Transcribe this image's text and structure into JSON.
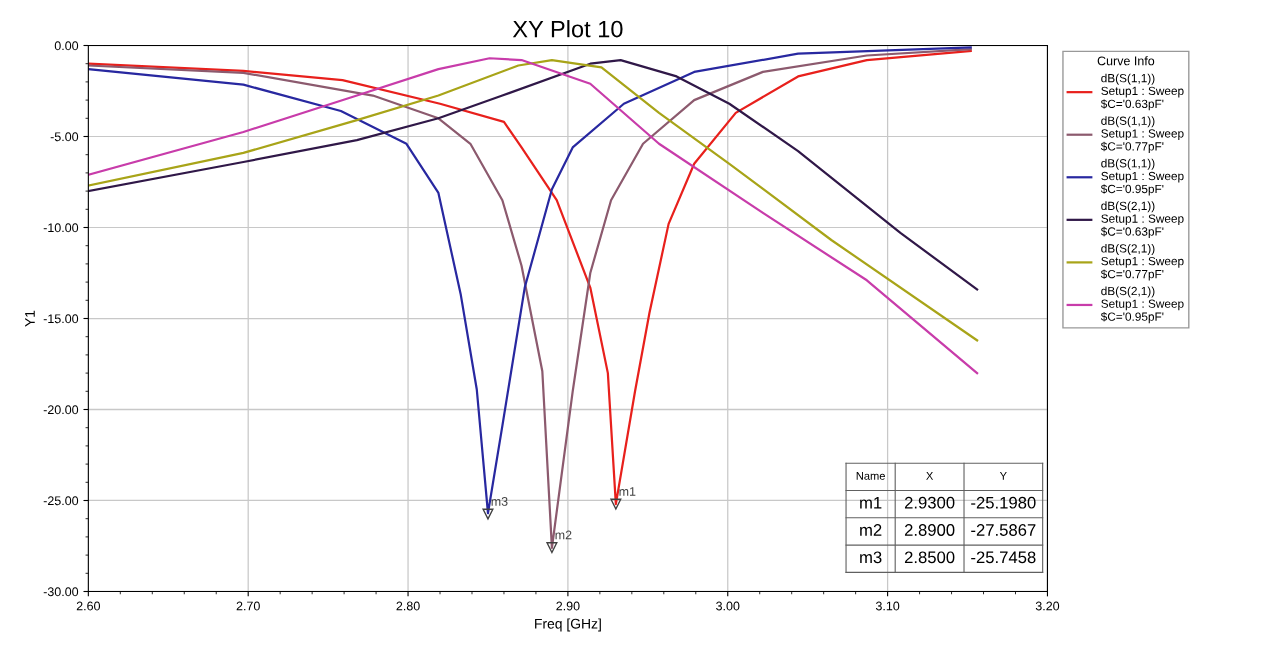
{
  "chart_data": {
    "type": "line",
    "title": "XY Plot 10",
    "xlabel": "Freq [GHz]",
    "ylabel": "Y1",
    "legend_title": "Curve Info",
    "xlim": [
      2.6,
      3.2
    ],
    "ylim": [
      -30,
      0
    ],
    "xticks": [
      {
        "value": 2.6,
        "label": "2.60"
      },
      {
        "value": 2.7,
        "label": "2.70"
      },
      {
        "value": 2.8,
        "label": "2.80"
      },
      {
        "value": 2.9,
        "label": "2.90"
      },
      {
        "value": 3.0,
        "label": "3.00"
      },
      {
        "value": 3.1,
        "label": "3.10"
      },
      {
        "value": 3.2,
        "label": "3.20"
      }
    ],
    "yticks": [
      {
        "value": 0,
        "label": "0.00"
      },
      {
        "value": -5,
        "label": "-5.00"
      },
      {
        "value": -10,
        "label": "-10.00"
      },
      {
        "value": -15,
        "label": "-15.00"
      },
      {
        "value": -20,
        "label": "-20.00"
      },
      {
        "value": -25,
        "label": "-25.00"
      },
      {
        "value": -30,
        "label": "-30.00"
      }
    ],
    "grid": true,
    "legend": "right",
    "marker": "none",
    "line_style": "solid",
    "series": [
      {
        "name": "dB(S(1,1))\nSetup1 : Sweep\n$C='0.63pF'",
        "color": "#e8201c",
        "x": [
          2.6,
          2.697,
          2.759,
          2.82,
          2.86,
          2.871,
          2.893,
          2.914,
          2.925,
          2.93,
          2.942,
          2.951,
          2.963,
          2.979,
          3.005,
          3.044,
          3.087,
          3.152
        ],
        "values": [
          -1.0,
          -1.4,
          -1.9,
          -3.2,
          -4.2,
          -5.6,
          -8.5,
          -13.3,
          -18.0,
          -25.2,
          -19.0,
          -14.7,
          -9.8,
          -6.5,
          -3.7,
          -1.7,
          -0.8,
          -0.3
        ]
      },
      {
        "name": "dB(S(1,1))\nSetup1 : Sweep\n$C='0.77pF'",
        "color": "#8c5a6e",
        "x": [
          2.6,
          2.697,
          2.778,
          2.819,
          2.839,
          2.859,
          2.871,
          2.884,
          2.89,
          2.903,
          2.914,
          2.927,
          2.947,
          2.979,
          3.022,
          3.087,
          3.152
        ],
        "values": [
          -1.1,
          -1.5,
          -2.75,
          -4.0,
          -5.4,
          -8.5,
          -12.1,
          -17.9,
          -27.6,
          -19.0,
          -12.5,
          -8.5,
          -5.4,
          -3.0,
          -1.45,
          -0.55,
          -0.2
        ]
      },
      {
        "name": "dB(S(1,1))\nSetup1 : Sweep\n$C='0.95pF'",
        "color": "#2828a0",
        "x": [
          2.6,
          2.697,
          2.758,
          2.799,
          2.819,
          2.833,
          2.843,
          2.85,
          2.859,
          2.873,
          2.89,
          2.903,
          2.935,
          2.979,
          3.044,
          3.152
        ],
        "values": [
          -1.3,
          -2.15,
          -3.6,
          -5.4,
          -8.1,
          -13.7,
          -18.9,
          -25.7,
          -20.9,
          -13.3,
          -7.9,
          -5.6,
          -3.2,
          -1.45,
          -0.45,
          -0.1
        ]
      },
      {
        "name": "dB(S(2,1))\nSetup1 : Sweep\n$C='0.63pF'",
        "color": "#301848",
        "x": [
          2.6,
          2.697,
          2.768,
          2.819,
          2.859,
          2.914,
          2.933,
          2.968,
          3.001,
          3.044,
          3.108,
          3.156
        ],
        "values": [
          -8.0,
          -6.4,
          -5.2,
          -4.0,
          -2.75,
          -1.0,
          -0.8,
          -1.7,
          -3.2,
          -5.8,
          -10.3,
          -13.4
        ]
      },
      {
        "name": "dB(S(2,1))\nSetup1 : Sweep\n$C='0.77pF'",
        "color": "#a8a418",
        "x": [
          2.6,
          2.697,
          2.768,
          2.819,
          2.869,
          2.89,
          2.921,
          2.957,
          3.001,
          3.065,
          3.156
        ],
        "values": [
          -7.7,
          -5.9,
          -4.1,
          -2.75,
          -1.1,
          -0.8,
          -1.2,
          -3.7,
          -6.5,
          -10.7,
          -16.2
        ]
      },
      {
        "name": "dB(S(2,1))\nSetup1 : Sweep\n$C='0.95pF'",
        "color": "#c83caa",
        "x": [
          2.6,
          2.697,
          2.768,
          2.819,
          2.851,
          2.871,
          2.914,
          2.957,
          3.022,
          3.087,
          3.156
        ],
        "values": [
          -7.1,
          -4.75,
          -2.75,
          -1.3,
          -0.7,
          -0.8,
          -2.1,
          -5.4,
          -9.2,
          -12.9,
          -18.0
        ]
      }
    ],
    "annotations": [
      {
        "text": "m1",
        "x": 2.93,
        "y": -25.198
      },
      {
        "text": "m2",
        "x": 2.89,
        "y": -27.5867
      },
      {
        "text": "m3",
        "x": 2.85,
        "y": -25.7458
      },
      "Name",
      "X",
      "Y",
      "m1",
      "2.9300",
      "-25.1980",
      "m2",
      "2.8900",
      "-27.5867",
      "m3",
      "2.8500",
      "-25.7458"
    ]
  }
}
